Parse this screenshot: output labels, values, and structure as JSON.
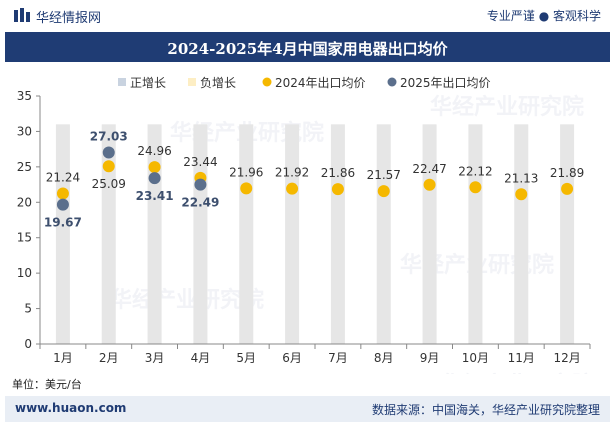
{
  "header": {
    "brand": "华经情报网",
    "tagline": "专业严谨 ● 客观科学"
  },
  "footer": {
    "website": "www.huaon.com",
    "source": "数据来源：中国海关，华经产业研究院整理"
  },
  "unit_label": "单位：美元/台",
  "watermark": "华经产业研究院",
  "colors": {
    "bar": "#e6e6e6",
    "y2024": "#f5b800",
    "y2025": "#5b6f8c",
    "title_bg": "#1f3c74"
  },
  "chart_data": {
    "type": "bar+scatter",
    "title": "2024-2025年4月中国家用电器出口均价",
    "categories": [
      "1月",
      "2月",
      "3月",
      "4月",
      "5月",
      "6月",
      "7月",
      "8月",
      "9月",
      "10月",
      "11月",
      "12月"
    ],
    "ylim": [
      0,
      35
    ],
    "yticks": [
      0,
      5,
      10,
      15,
      20,
      25,
      30,
      35
    ],
    "legend": [
      "正增长",
      "负增长",
      "2024年出口均价",
      "2025年出口均价"
    ],
    "legend_position": "top",
    "series": [
      {
        "name": "2024年出口均价",
        "values": [
          21.24,
          25.09,
          24.96,
          23.44,
          21.96,
          21.92,
          21.86,
          21.57,
          22.47,
          22.12,
          21.13,
          21.89
        ]
      },
      {
        "name": "2025年出口均价",
        "values": [
          19.67,
          27.03,
          23.41,
          22.49
        ]
      }
    ],
    "bar_values": [
      31,
      31,
      31,
      31,
      31,
      31,
      31,
      31,
      31,
      31,
      31,
      31
    ]
  }
}
